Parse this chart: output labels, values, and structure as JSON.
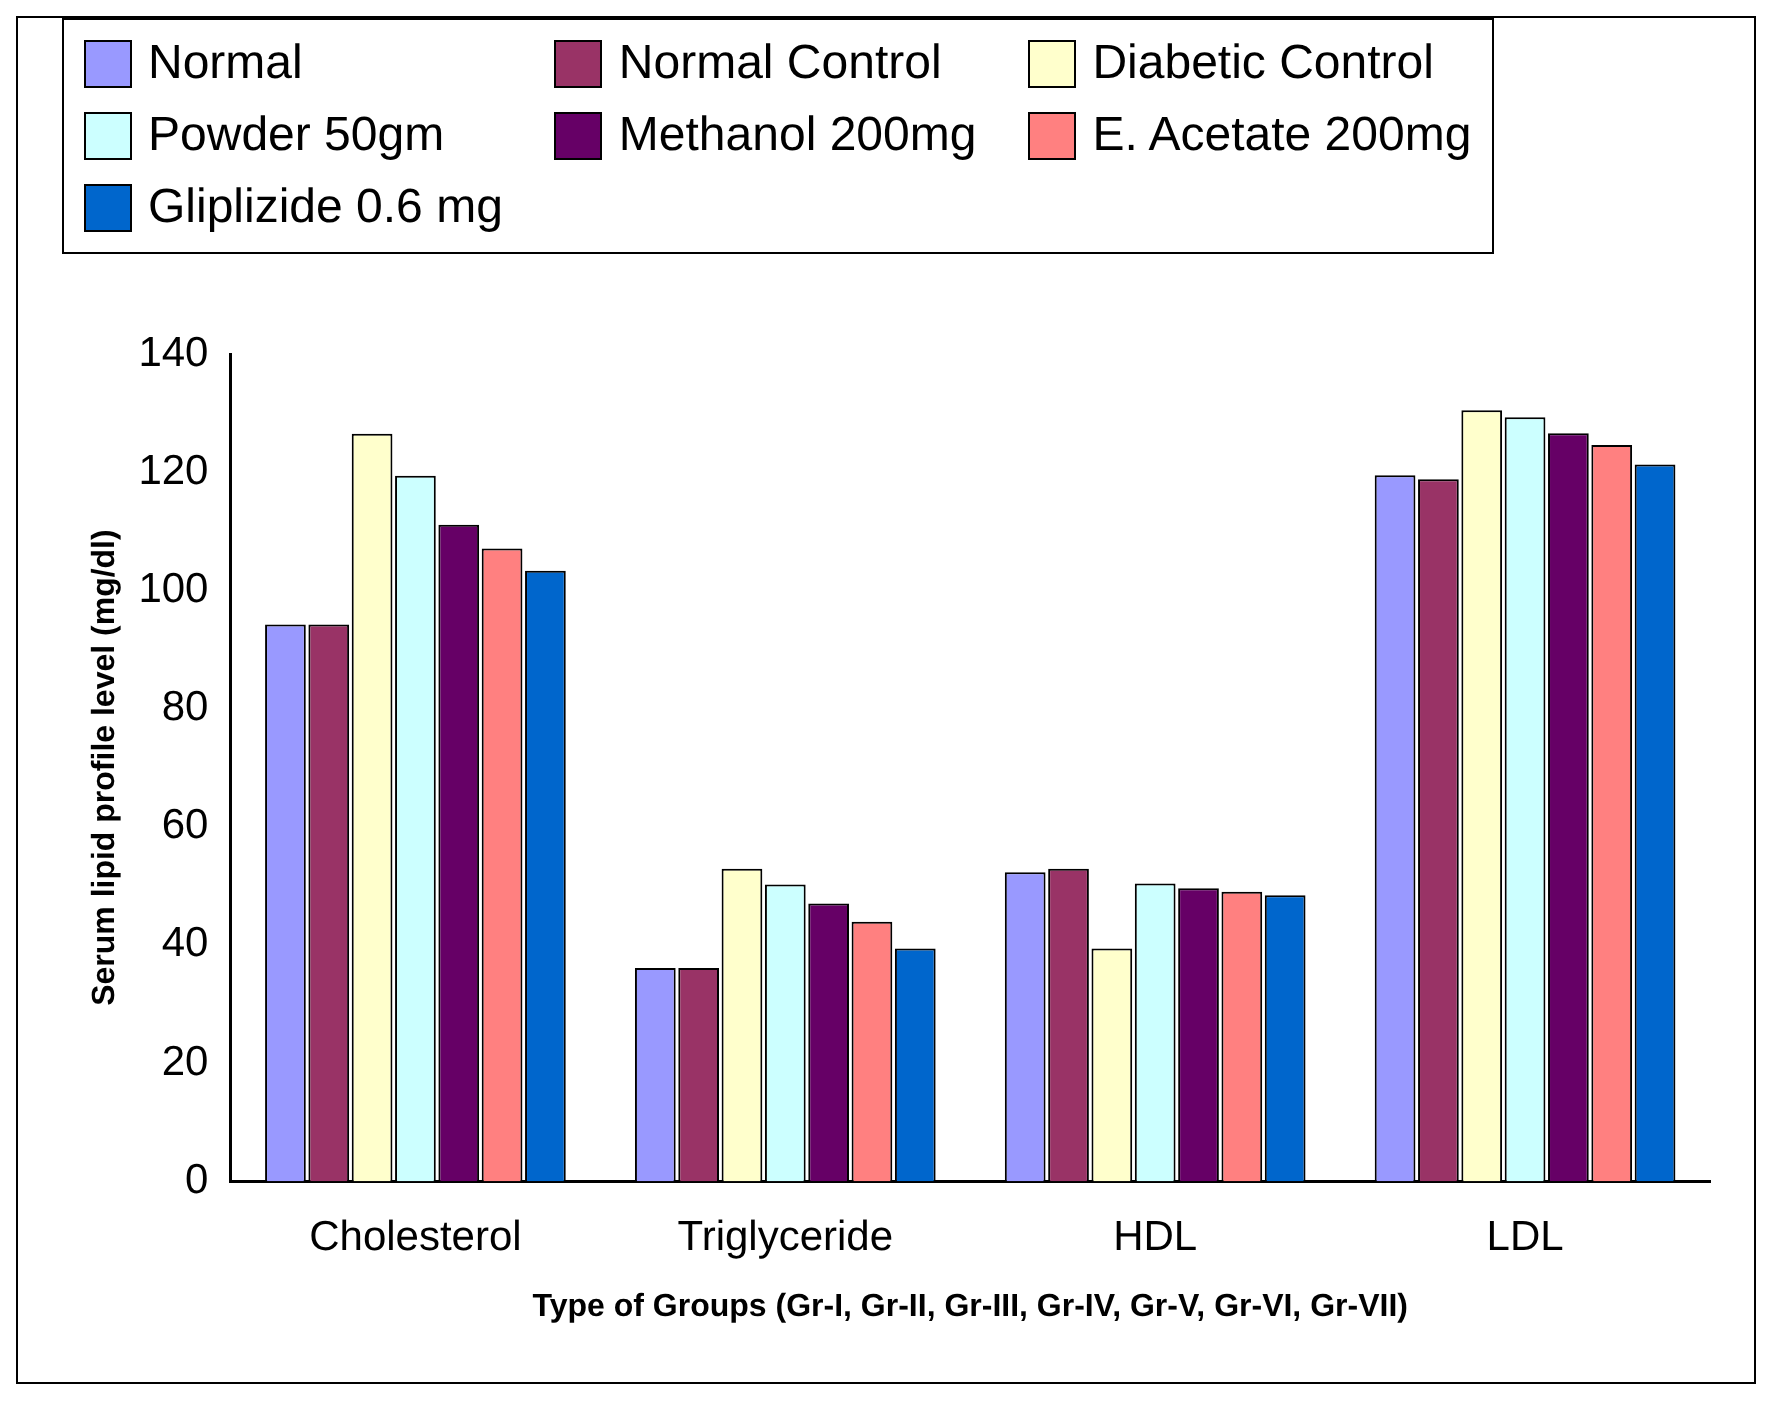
{
  "chart_data": {
    "type": "bar",
    "xlabel": "Type of Groups (Gr-I, Gr-II, Gr-III, Gr-IV, Gr-V, Gr-VI, Gr-VII)",
    "ylabel": "Serum lipid profile level (mg/dl)",
    "categories": [
      "Cholesterol",
      "Triglyceride",
      "HDL",
      "LDL"
    ],
    "series": [
      {
        "name": "Normal",
        "color": "#9999ff",
        "values": [
          94.2,
          36.1,
          52.3,
          119.5
        ]
      },
      {
        "name": "Normal Control",
        "color": "#993366",
        "values": [
          94.2,
          36.1,
          52.9,
          118.8
        ]
      },
      {
        "name": "Diabetic Control",
        "color": "#ffffcc",
        "values": [
          126.5,
          52.9,
          39.4,
          130.5
        ]
      },
      {
        "name": "Powder 50gm",
        "color": "#ccffff",
        "values": [
          119.4,
          50.2,
          50.4,
          129.3
        ]
      },
      {
        "name": "Methanol 200mg",
        "color": "#660066",
        "values": [
          111.1,
          47.0,
          49.6,
          126.6
        ]
      },
      {
        "name": "E. Acetate 200mg",
        "color": "#ff8080",
        "values": [
          107.1,
          43.9,
          49.0,
          124.6
        ]
      },
      {
        "name": "Gliplizide 0.6 mg",
        "color": "#0066cc",
        "values": [
          103.3,
          39.4,
          48.4,
          121.3
        ]
      }
    ],
    "ylim": [
      0,
      140
    ],
    "yticks": [
      0,
      20,
      40,
      60,
      80,
      100,
      120,
      140
    ],
    "grid": false,
    "legend": "top left"
  }
}
